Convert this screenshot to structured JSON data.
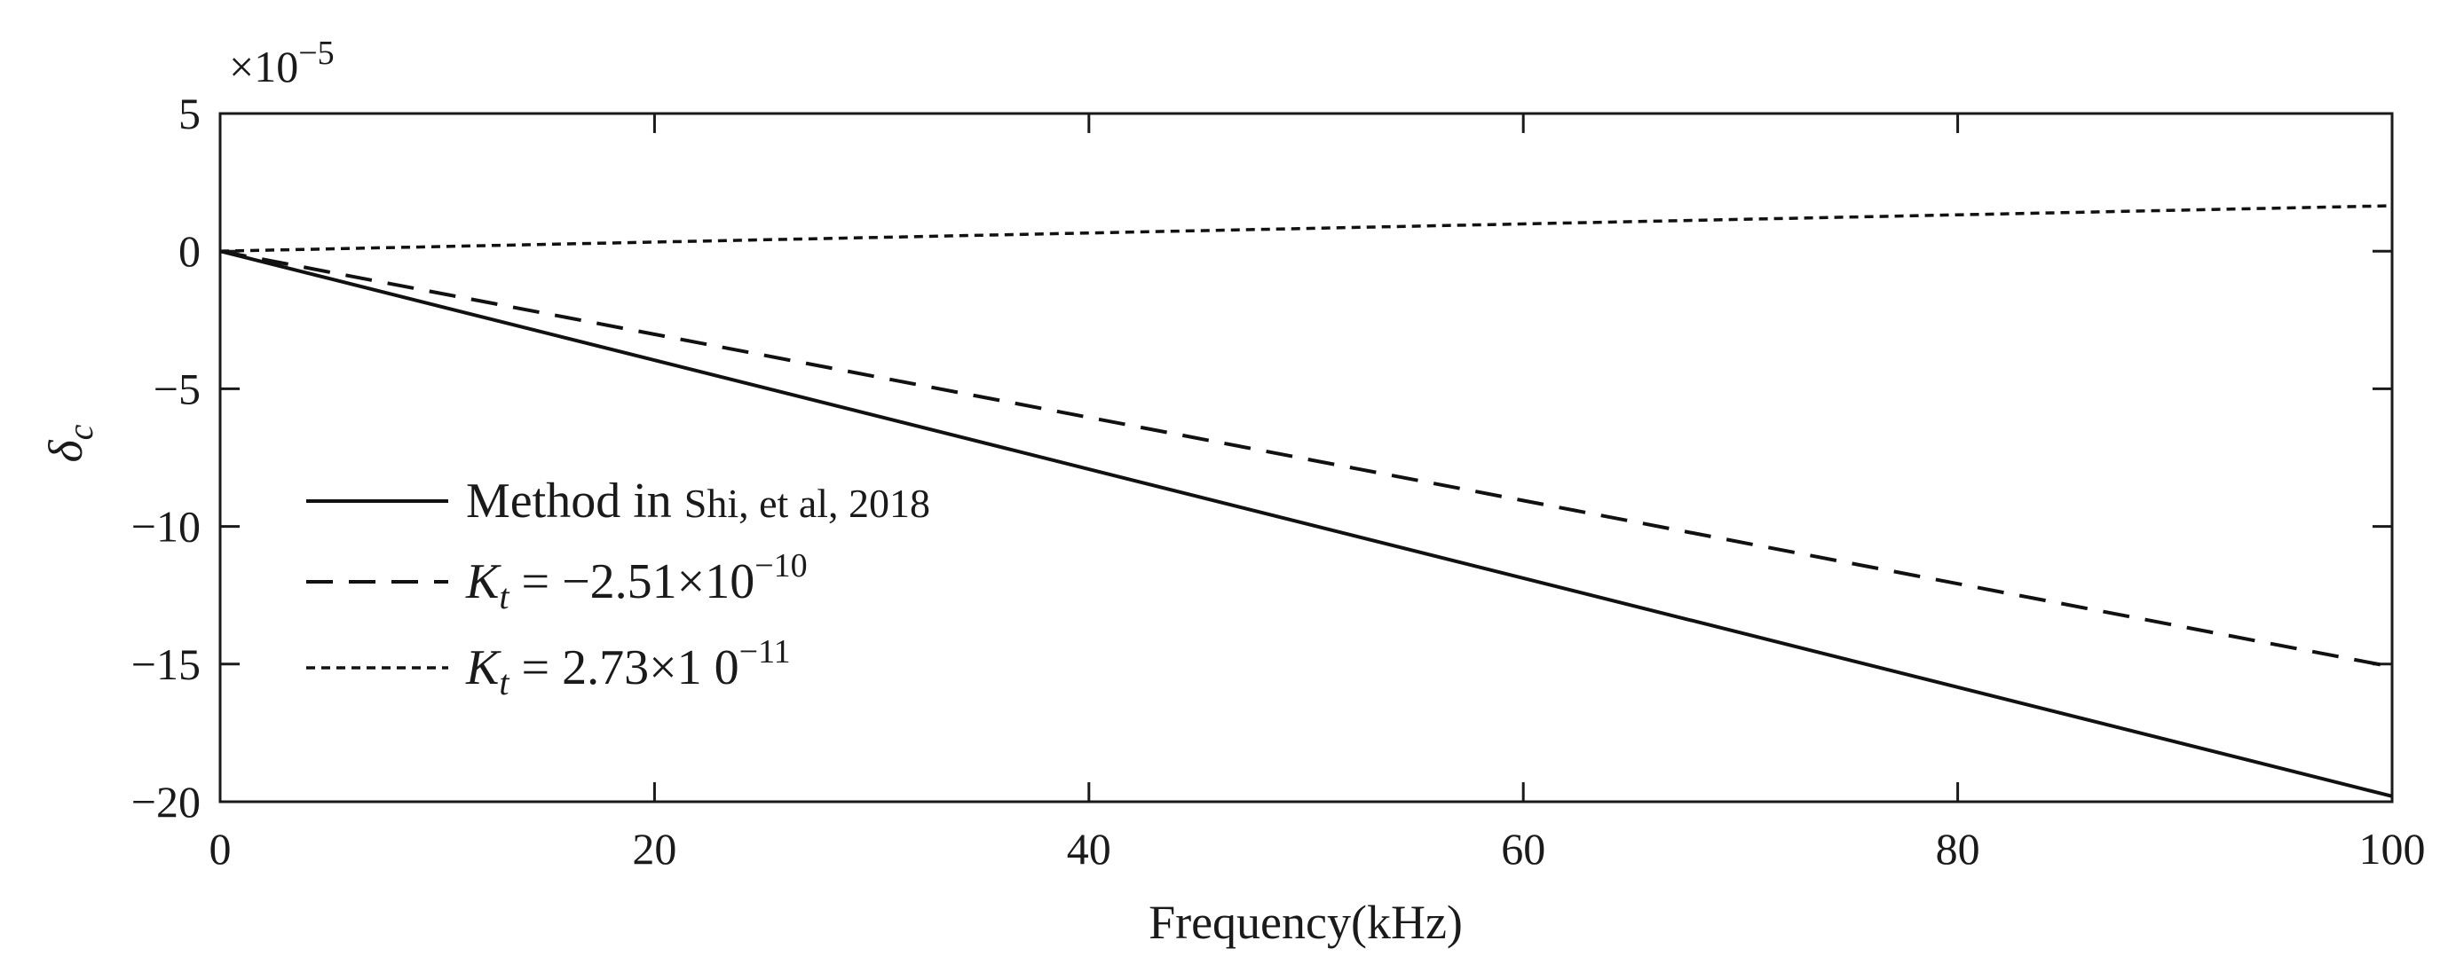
{
  "chart_data": {
    "type": "line",
    "title": "",
    "xlabel": "Frequency(kHz)",
    "ylabel": {
      "symbol": "δ",
      "subscript": "c"
    },
    "y_scale_multiplier": {
      "prefix": "×10",
      "exponent": "−5"
    },
    "xlim": [
      0,
      100
    ],
    "ylim": [
      -20,
      5
    ],
    "x_ticks": [
      0,
      20,
      40,
      60,
      80,
      100
    ],
    "y_ticks": [
      5,
      0,
      -5,
      -10,
      -15,
      -20
    ],
    "x_tick_labels": [
      "0",
      "20",
      "40",
      "60",
      "80",
      "100"
    ],
    "y_tick_labels": [
      "5",
      "0",
      "−5",
      "−10",
      "−15",
      "−20"
    ],
    "grid": false,
    "legend_position": "left-middle",
    "series": [
      {
        "name": "Method in Shi, et al, 2018",
        "label_main": "Method in ",
        "label_cite": "Shi, et al, 2018",
        "style": "solid",
        "x": [
          0,
          100
        ],
        "y": [
          0,
          -19.8
        ]
      },
      {
        "name": "Kt = −2.51×10^−10",
        "label_symbol": "K",
        "label_sub": "t",
        "label_rest": " = −2.51×10",
        "label_exp": "−10",
        "style": "dashed",
        "x": [
          0,
          100
        ],
        "y": [
          0,
          -15.1
        ]
      },
      {
        "name": "Kt = 2.73×10^−11",
        "label_symbol": "K",
        "label_sub": "t",
        "label_rest": " = 2.73×1 0",
        "label_exp": "−11",
        "style": "dotted",
        "x": [
          0,
          100
        ],
        "y": [
          0,
          1.65
        ]
      }
    ],
    "colors": {
      "line": "#111111",
      "axis": "#1a1a1a",
      "background": "#ffffff"
    }
  }
}
